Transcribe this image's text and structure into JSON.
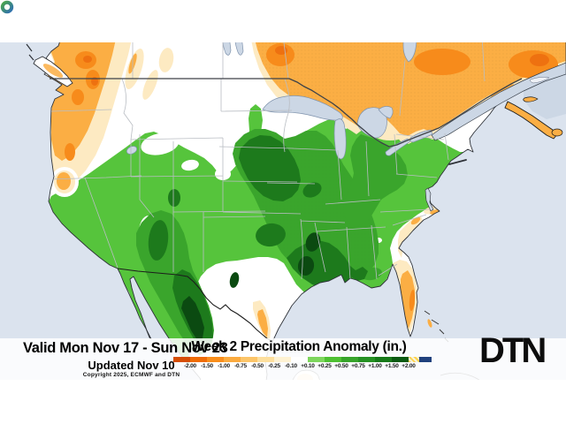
{
  "map": {
    "title": "Week 2 Precipitation Anomaly (in.)"
  },
  "footer": {
    "valid_text": "Valid Mon Nov 17 - Sun Nov 23",
    "updated_text": "Updated Nov 10",
    "copyright_text": "Copyright 2025, ECMWF and DTN"
  },
  "legend": {
    "ticks": [
      "-2.00",
      "-1.50",
      "-1.00",
      "-0.75",
      "-0.50",
      "-0.25",
      "-0.10",
      "+0.10",
      "+0.25",
      "+0.50",
      "+0.75",
      "+1.00",
      "+1.50",
      "+2.00"
    ],
    "cells": [
      {
        "color": "#d54e03",
        "width": 19
      },
      {
        "color": "#ef6c04",
        "width": 19
      },
      {
        "color": "#f98e1b",
        "width": 19
      },
      {
        "color": "#fbab3f",
        "width": 19
      },
      {
        "color": "#fcc569",
        "width": 19
      },
      {
        "color": "#fddf9d",
        "width": 19
      },
      {
        "color": "#fef2d2",
        "width": 19
      },
      {
        "color": "#ffffff",
        "width": 19
      },
      {
        "color": "#7dd65c",
        "width": 19
      },
      {
        "color": "#4ec032",
        "width": 19
      },
      {
        "color": "#37a42a",
        "width": 19
      },
      {
        "color": "#259122",
        "width": 19
      },
      {
        "color": "#177a19",
        "width": 19
      },
      {
        "color": "#0b5a12",
        "width": 19
      },
      {
        "color": "stripes",
        "width": 12
      },
      {
        "color": "#20417d",
        "width": 14
      }
    ]
  },
  "logo": {
    "text": "DTN"
  },
  "colors": {
    "ocean": "#dbe3ee",
    "lake": "#ccd7e5",
    "land": "#ffffff",
    "orange_pale": "#fdeac2",
    "orange_light": "#fdd88f",
    "orange_medium": "#fbae44",
    "orange_dark": "#f78b1b",
    "orange_deep": "#ee7110",
    "green_light": "#56c43c",
    "green_medium": "#3aa52c",
    "green_dark": "#1d7a1c",
    "green_deepest": "#0b4a11",
    "above_range_blue": "#20417d",
    "logo_ring_green": "#4aa54a",
    "logo_ring_blue": "#2f6fb3"
  }
}
